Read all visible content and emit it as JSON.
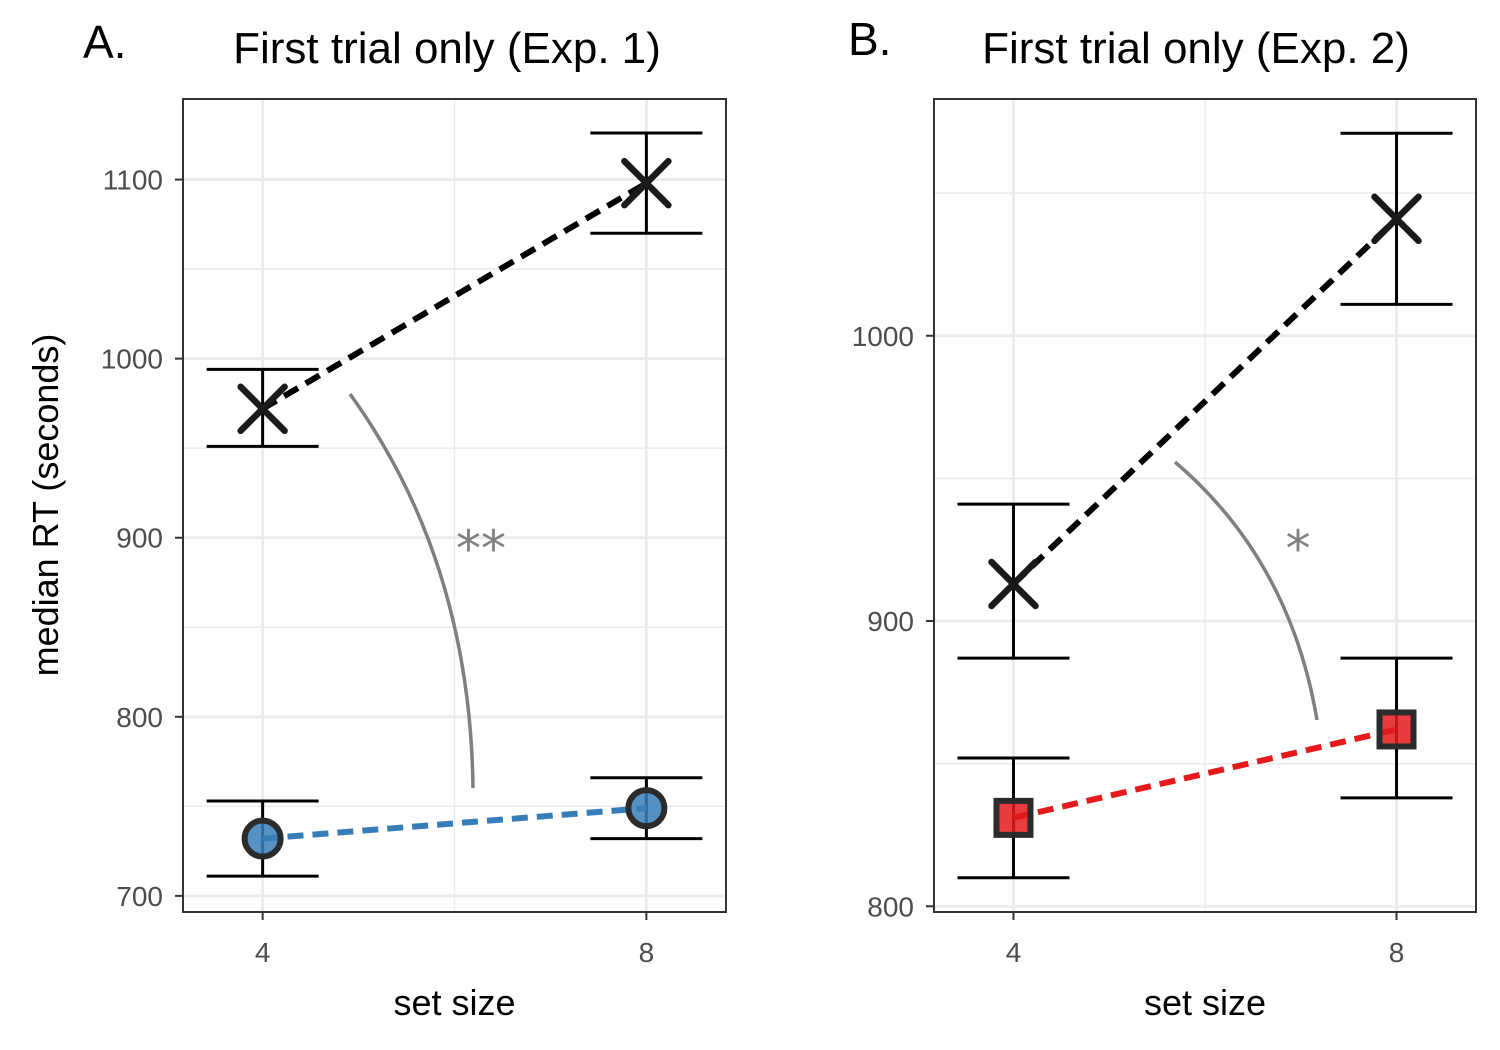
{
  "figure": {
    "ylabel": "median RT (seconds)"
  },
  "chart_data": [
    {
      "type": "line",
      "panel_label": "A.",
      "title": "First trial only (Exp. 1)",
      "xlabel": "set size",
      "ylabel": "median RT (seconds)",
      "x_ticks": [
        4,
        8
      ],
      "y_ticks": [
        700,
        800,
        900,
        1000,
        1100
      ],
      "xlim": [
        3.17,
        8.83
      ],
      "ylim": [
        691,
        1145
      ],
      "grid": true,
      "significance": "**",
      "series": [
        {
          "marker": "cross",
          "color": "#000000",
          "x": [
            4,
            8
          ],
          "y": [
            972,
            1098
          ],
          "err_low": [
            951,
            1070
          ],
          "err_high": [
            994,
            1126
          ]
        },
        {
          "marker": "circle",
          "color": "#377eb8",
          "x": [
            4,
            8
          ],
          "y": [
            732,
            749
          ],
          "err_low": [
            711,
            732
          ],
          "err_high": [
            753,
            766
          ]
        }
      ]
    },
    {
      "type": "line",
      "panel_label": "B.",
      "title": "First trial only (Exp. 2)",
      "xlabel": "set size",
      "ylabel": "",
      "x_ticks": [
        4,
        8
      ],
      "y_ticks": [
        800,
        900,
        1000
      ],
      "xlim": [
        3.17,
        8.83
      ],
      "ylim": [
        798,
        1083
      ],
      "grid": true,
      "significance": "*",
      "series": [
        {
          "marker": "cross",
          "color": "#000000",
          "x": [
            4,
            8
          ],
          "y": [
            913,
            1041
          ],
          "err_low": [
            887,
            1011
          ],
          "err_high": [
            941,
            1071
          ]
        },
        {
          "marker": "square",
          "color": "#e41a1c",
          "x": [
            4,
            8
          ],
          "y": [
            831,
            862
          ],
          "err_low": [
            810,
            838
          ],
          "err_high": [
            852,
            887
          ]
        }
      ]
    }
  ]
}
